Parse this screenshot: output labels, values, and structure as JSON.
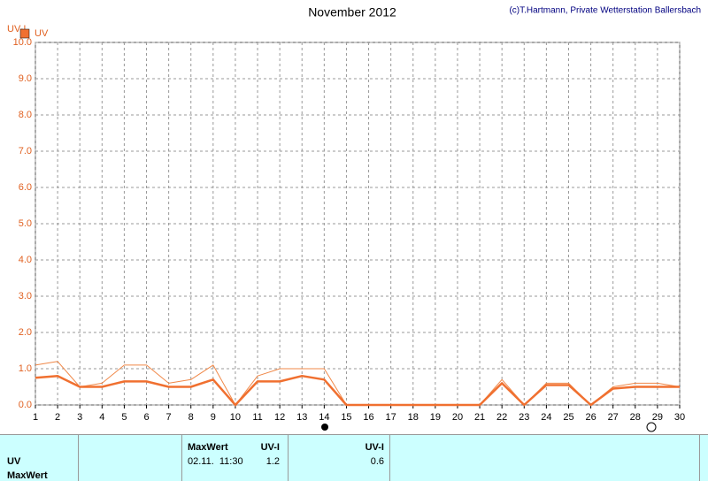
{
  "chart_data": {
    "type": "line",
    "title": "November 2012",
    "credit": "(c)T.Hartmann, Private Wetterstation Ballersbach",
    "y_label": "UV-I",
    "x": [
      1,
      2,
      3,
      4,
      5,
      6,
      7,
      8,
      9,
      10,
      11,
      12,
      13,
      14,
      15,
      16,
      17,
      18,
      19,
      20,
      21,
      22,
      23,
      24,
      25,
      26,
      27,
      28,
      29,
      30
    ],
    "series": [
      {
        "name": "UV",
        "color": "#f07030",
        "width": 2.5,
        "values": [
          0.75,
          0.8,
          0.5,
          0.5,
          0.65,
          0.65,
          0.5,
          0.5,
          0.7,
          0,
          0.65,
          0.65,
          0.8,
          0.7,
          0,
          0,
          0,
          0,
          0,
          0,
          0,
          0.6,
          0,
          0.55,
          0.55,
          0,
          0.45,
          0.5,
          0.5,
          0.5
        ]
      },
      {
        "color": "#f08848",
        "width": 1,
        "values": [
          1.1,
          1.2,
          0.5,
          0.6,
          1.1,
          1.1,
          0.6,
          0.7,
          1.1,
          0,
          0.8,
          1.0,
          1.0,
          1.0,
          0,
          0,
          0,
          0,
          0,
          0,
          0,
          0.7,
          0,
          0.6,
          0.6,
          0,
          0.5,
          0.6,
          0.6,
          0.5
        ]
      }
    ],
    "xlim": [
      1,
      30
    ],
    "xticks": [
      1,
      2,
      3,
      4,
      5,
      6,
      7,
      8,
      9,
      10,
      11,
      12,
      13,
      14,
      15,
      16,
      17,
      18,
      19,
      20,
      21,
      22,
      23,
      24,
      25,
      26,
      27,
      28,
      29,
      30
    ],
    "ylim": [
      0,
      10
    ],
    "yticks": [
      {
        "value": 0,
        "label": "0.0"
      },
      {
        "value": 1,
        "label": "1.0"
      },
      {
        "value": 2,
        "label": "2.0"
      },
      {
        "value": 3,
        "label": "3.0"
      },
      {
        "value": 4,
        "label": "4.0"
      },
      {
        "value": 5,
        "label": "5.0"
      },
      {
        "value": 6,
        "label": "6.0"
      },
      {
        "value": 7,
        "label": "7.0"
      },
      {
        "value": 8,
        "label": "8.0"
      },
      {
        "value": 9,
        "label": "9.0"
      },
      {
        "value": 10,
        "label": "10.0"
      }
    ],
    "grid": true,
    "legend": "top-left"
  },
  "table": {
    "row_labels": [
      "UV",
      "MaxWert"
    ],
    "max_header": "MaxWert",
    "max_unit": "UV-I",
    "max_time": "02.11.  11:30",
    "max_value": "1.2",
    "avg_unit": "UV-I",
    "avg_value": "0.6"
  }
}
